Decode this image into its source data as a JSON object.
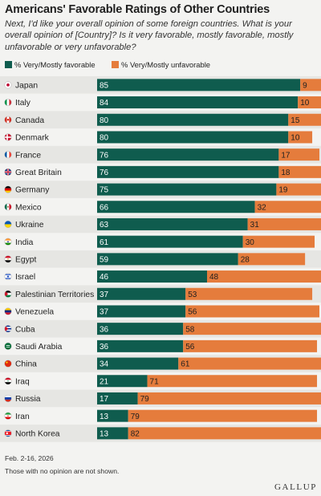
{
  "header": {
    "title": "Americans' Favorable Ratings of Other Countries",
    "subtitle": "Next, I'd like your overall opinion of some foreign countries. What is your overall opinion of [Country]? Is it very favorable, mostly favorable, mostly unfavorable or very unfavorable?"
  },
  "footer": {
    "date": "Feb. 2-16, 2026",
    "note": "Those with no opinion are not shown.",
    "brand": "GALLUP"
  },
  "colors": {
    "favorable": "#0f5c4e",
    "unfavorable": "#e57c3c",
    "row_even": "#e6e6e3",
    "row_odd": "#f3f3f1"
  },
  "chart_data": {
    "type": "bar",
    "orientation": "horizontal",
    "stacked": true,
    "legend_position": "top-left",
    "xlim": [
      0,
      100
    ],
    "categories": [
      "Japan",
      "Italy",
      "Canada",
      "Denmark",
      "France",
      "Great Britain",
      "Germany",
      "Mexico",
      "Ukraine",
      "India",
      "Egypt",
      "Israel",
      "Palestinian Territories",
      "Venezuela",
      "Cuba",
      "Saudi Arabia",
      "China",
      "Iraq",
      "Russia",
      "Iran",
      "North Korea"
    ],
    "flag_icons": [
      "japan-flag-icon",
      "italy-flag-icon",
      "canada-flag-icon",
      "denmark-flag-icon",
      "france-flag-icon",
      "great-britain-flag-icon",
      "germany-flag-icon",
      "mexico-flag-icon",
      "ukraine-flag-icon",
      "india-flag-icon",
      "egypt-flag-icon",
      "israel-flag-icon",
      "palestine-flag-icon",
      "venezuela-flag-icon",
      "cuba-flag-icon",
      "saudi-arabia-flag-icon",
      "china-flag-icon",
      "iraq-flag-icon",
      "russia-flag-icon",
      "iran-flag-icon",
      "north-korea-flag-icon"
    ],
    "series": [
      {
        "name": "% Very/Mostly favorable",
        "values": [
          85,
          84,
          80,
          80,
          76,
          76,
          75,
          66,
          63,
          61,
          59,
          46,
          37,
          37,
          36,
          36,
          34,
          21,
          17,
          13,
          13
        ]
      },
      {
        "name": "% Very/Mostly unfavorable",
        "values": [
          9,
          10,
          15,
          10,
          17,
          18,
          19,
          32,
          31,
          30,
          28,
          48,
          53,
          56,
          58,
          56,
          61,
          71,
          79,
          79,
          82
        ]
      }
    ]
  }
}
